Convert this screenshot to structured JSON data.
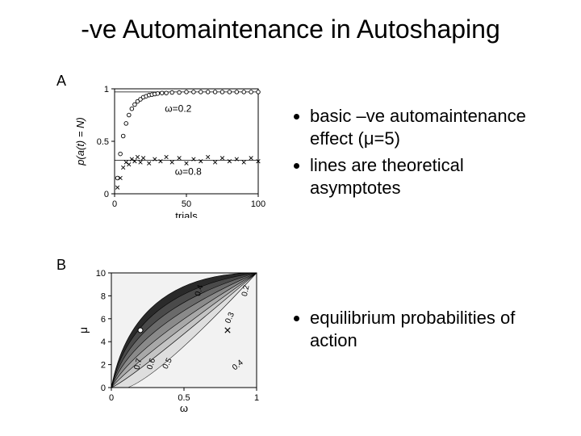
{
  "title": "-ve Automaintenance in Autoshaping",
  "panelA": {
    "label": "A",
    "ylabel": "p(a(t) = N)",
    "xlabel": "trials",
    "xlim": [
      0,
      100
    ],
    "ylim": [
      0,
      1
    ],
    "xticks": [
      0,
      50,
      100
    ],
    "yticks": [
      0,
      0.5,
      1
    ],
    "series_top": {
      "annotation": "ω=0.2",
      "asymptote": 0.97,
      "points_x": [
        2,
        4,
        6,
        8,
        10,
        12,
        14,
        16,
        18,
        20,
        22,
        24,
        26,
        28,
        30,
        33,
        36,
        40,
        45,
        50,
        55,
        60,
        65,
        70,
        75,
        80,
        85,
        90,
        95,
        100
      ],
      "points_y": [
        0.15,
        0.38,
        0.55,
        0.67,
        0.75,
        0.81,
        0.85,
        0.88,
        0.9,
        0.92,
        0.93,
        0.94,
        0.945,
        0.95,
        0.955,
        0.96,
        0.96,
        0.965,
        0.965,
        0.97,
        0.97,
        0.97,
        0.97,
        0.97,
        0.97,
        0.97,
        0.97,
        0.97,
        0.97,
        0.97
      ]
    },
    "series_bot": {
      "annotation": "ω=0.8",
      "asymptote": 0.32,
      "points_x": [
        2,
        4,
        6,
        8,
        10,
        12,
        14,
        16,
        18,
        20,
        24,
        28,
        32,
        36,
        40,
        45,
        50,
        55,
        60,
        65,
        70,
        75,
        80,
        85,
        90,
        95,
        100
      ],
      "points_y": [
        0.06,
        0.15,
        0.25,
        0.3,
        0.28,
        0.33,
        0.31,
        0.35,
        0.3,
        0.34,
        0.29,
        0.33,
        0.31,
        0.35,
        0.3,
        0.34,
        0.29,
        0.33,
        0.31,
        0.35,
        0.3,
        0.34,
        0.31,
        0.33,
        0.3,
        0.34,
        0.31
      ]
    },
    "axis_color": "#000000",
    "bg": "#ffffff",
    "point_fill": "#ffffff",
    "point_stroke": "#000000"
  },
  "panelB": {
    "label": "B",
    "ylabel": "μ",
    "xlabel": "ω",
    "xlim": [
      0,
      1
    ],
    "ylim": [
      0,
      10
    ],
    "xticks": [
      0,
      0.5,
      1
    ],
    "yticks": [
      0,
      2,
      4,
      6,
      8,
      10
    ],
    "bands": [
      {
        "color": "#2a2a2a",
        "ctrl_hi": 12.5,
        "ctrl_lo": 10.6
      },
      {
        "color": "#4a4a4a",
        "ctrl_hi": 10.6,
        "ctrl_lo": 8.6
      },
      {
        "color": "#6a6a6a",
        "ctrl_hi": 8.6,
        "ctrl_lo": 6.6
      },
      {
        "color": "#8a8a8a",
        "ctrl_hi": 6.6,
        "ctrl_lo": 4.6
      },
      {
        "color": "#a8a8a8",
        "ctrl_hi": 4.6,
        "ctrl_lo": 2.8
      },
      {
        "color": "#c4c4c4",
        "ctrl_hi": 2.8,
        "ctrl_lo": 1.0
      },
      {
        "color": "#dedede",
        "ctrl_hi": 1.0,
        "ctrl_lo": -2.0
      }
    ],
    "contour_labels": [
      {
        "text": "0.2",
        "ox": 0.94,
        "oy": 8.4,
        "rot": -78
      },
      {
        "text": "0.3",
        "ox": 0.83,
        "oy": 6.0,
        "rot": -66
      },
      {
        "text": "0.4",
        "ox": 0.88,
        "oy": 1.8,
        "rot": -40
      },
      {
        "text": "0.4",
        "ox": 0.62,
        "oy": 8.4,
        "rot": -72
      },
      {
        "text": "0.5",
        "ox": 0.4,
        "oy": 2.0,
        "rot": -62
      },
      {
        "text": "0.6",
        "ox": 0.29,
        "oy": 2.0,
        "rot": -72
      },
      {
        "text": "0.7",
        "ox": 0.2,
        "oy": 2.0,
        "rot": -76
      }
    ],
    "markers": [
      {
        "type": "circle",
        "ox": 0.2,
        "oy": 5.0
      },
      {
        "type": "cross",
        "ox": 0.8,
        "oy": 5.0
      }
    ],
    "axis_color": "#000000",
    "bg": "#ffffff"
  },
  "bullets_a": [
    "basic –ve automaintenance effect (μ=5)",
    "lines are theoretical asymptotes"
  ],
  "bullets_b": [
    "equilibrium probabilities of action"
  ]
}
